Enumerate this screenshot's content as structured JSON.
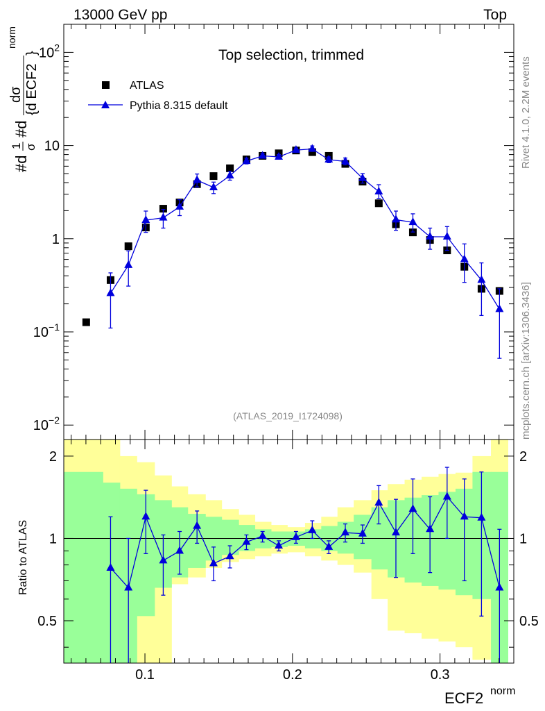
{
  "header": {
    "left": "13000 GeV pp",
    "right": "Top"
  },
  "side_text": {
    "rivet": "Rivet 4.1.0,  2.2M events",
    "mcplots": "mcplots.cern.ch [arXiv:1306.3436]"
  },
  "colors": {
    "data": "#000000",
    "mc": "#0000dd",
    "band_outer": "#ffff99",
    "band_inner": "#99ff99"
  },
  "chart_data": [
    {
      "type": "scatter",
      "title": "Top selection, trimmed",
      "analysis_id": "(ATLAS_2019_I1724098)",
      "xlabel": "ECF2",
      "xlabel_sup": "norm",
      "ylabel": "#d1/σ #d dσ/{d ECF2 norm}",
      "ylabel_parts": {
        "prefix": "#d",
        "one": "1",
        "sigma": "σ",
        "mid": "#d",
        "num": "dσ",
        "den": "{d ECF2",
        "sup": "norm",
        "close": "}"
      },
      "yscale": "log",
      "xlim": [
        0.045,
        0.35
      ],
      "ylim": [
        0.007,
        200
      ],
      "x_ticks": [
        "0.1",
        "0.2",
        "0.3"
      ],
      "y_ticks": [
        {
          "value": 100,
          "base": "10",
          "exp": "2"
        },
        {
          "value": 10,
          "base": "10",
          "exp": ""
        },
        {
          "value": 1,
          "base": "1",
          "exp": ""
        },
        {
          "value": 0.1,
          "base": "10",
          "exp": "−1"
        },
        {
          "value": 0.01,
          "base": "10",
          "exp": "−2"
        }
      ],
      "legend": {
        "position": "top-left",
        "entries": [
          "ATLAS",
          "Pythia 8.315 default"
        ]
      },
      "series": [
        {
          "name": "ATLAS",
          "x": [
            0.0602,
            0.0767,
            0.0888,
            0.1006,
            0.1124,
            0.1235,
            0.1353,
            0.1465,
            0.1576,
            0.1688,
            0.1797,
            0.1907,
            0.2024,
            0.2134,
            0.2246,
            0.2358,
            0.2475,
            0.2585,
            0.2701,
            0.2816,
            0.2932,
            0.3048,
            0.3165,
            0.3281,
            0.3403
          ],
          "values": [
            0.127,
            0.36,
            0.83,
            1.32,
            2.1,
            2.45,
            3.85,
            4.7,
            5.7,
            7.1,
            7.75,
            8.25,
            8.85,
            8.5,
            7.75,
            6.35,
            4.1,
            2.4,
            1.43,
            1.17,
            0.97,
            0.75,
            0.5,
            0.29,
            0.275
          ]
        },
        {
          "name": "Pythia 8.315 default",
          "x": [
            0.0767,
            0.0888,
            0.1006,
            0.1124,
            0.1235,
            0.1353,
            0.1465,
            0.1576,
            0.1688,
            0.1797,
            0.1907,
            0.2024,
            0.2134,
            0.2246,
            0.2358,
            0.2475,
            0.2585,
            0.2701,
            0.2816,
            0.2932,
            0.3048,
            0.3165,
            0.3281,
            0.3403
          ],
          "values": [
            0.26,
            0.52,
            1.58,
            1.68,
            2.2,
            4.25,
            3.55,
            4.75,
            6.8,
            7.75,
            7.55,
            8.95,
            9.2,
            7.05,
            6.75,
            4.45,
            3.2,
            1.6,
            1.5,
            1.05,
            1.05,
            0.6,
            0.36,
            0.175
          ],
          "err_low": [
            0.11,
            0.31,
            1.17,
            1.3,
            1.77,
            3.6,
            3.05,
            4.25,
            6.35,
            7.35,
            7.15,
            8.45,
            8.65,
            6.55,
            6.2,
            3.95,
            2.7,
            1.23,
            1.18,
            0.77,
            0.75,
            0.34,
            0.15,
            0.052
          ],
          "err_high": [
            0.43,
            0.74,
            1.98,
            2.06,
            2.62,
            4.95,
            4.05,
            5.3,
            7.3,
            8.2,
            8.0,
            9.4,
            9.9,
            7.55,
            7.35,
            5.0,
            3.8,
            1.98,
            1.85,
            1.3,
            1.35,
            0.88,
            0.55,
            0.29
          ]
        }
      ]
    },
    {
      "type": "scatter",
      "ylabel": "Ratio to ATLAS",
      "xlabel": "ECF2",
      "xlim": [
        0.045,
        0.35
      ],
      "ylim": [
        0.35,
        2.3
      ],
      "y_ticks": [
        "2",
        "1",
        "0.5"
      ],
      "bands": {
        "edges": [
          0.045,
          0.0715,
          0.083,
          0.0945,
          0.1065,
          0.118,
          0.129,
          0.141,
          0.152,
          0.1635,
          0.1745,
          0.1855,
          0.1965,
          0.2085,
          0.2195,
          0.2305,
          0.2415,
          0.2535,
          0.2645,
          0.276,
          0.2875,
          0.299,
          0.3105,
          0.322,
          0.3345,
          0.346
        ],
        "outer_low": [
          0.35,
          0.35,
          0.35,
          0.35,
          0.35,
          0.68,
          0.72,
          0.78,
          0.82,
          0.84,
          0.86,
          0.88,
          0.89,
          0.86,
          0.83,
          0.8,
          0.75,
          0.6,
          0.46,
          0.45,
          0.43,
          0.42,
          0.4,
          0.36,
          0.35
        ],
        "outer_high": [
          2.3,
          2.3,
          2.0,
          1.9,
          1.7,
          1.55,
          1.45,
          1.38,
          1.28,
          1.22,
          1.15,
          1.12,
          1.1,
          1.14,
          1.2,
          1.3,
          1.38,
          1.5,
          1.58,
          1.64,
          1.68,
          1.72,
          1.74,
          2.0,
          2.3
        ],
        "inner_low": [
          0.35,
          0.35,
          0.35,
          0.52,
          0.66,
          0.72,
          0.78,
          0.83,
          0.87,
          0.9,
          0.92,
          0.93,
          0.94,
          0.92,
          0.9,
          0.88,
          0.84,
          0.77,
          0.72,
          0.69,
          0.67,
          0.65,
          0.62,
          0.6,
          0.35
        ],
        "inner_high": [
          1.75,
          1.6,
          1.52,
          1.45,
          1.38,
          1.3,
          1.23,
          1.2,
          1.17,
          1.12,
          1.08,
          1.06,
          1.06,
          1.08,
          1.11,
          1.15,
          1.22,
          1.3,
          1.38,
          1.41,
          1.44,
          1.48,
          1.52,
          1.75,
          1.75
        ]
      },
      "series": [
        {
          "name": "Pythia 8.315 default / ATLAS",
          "x": [
            0.0767,
            0.0888,
            0.1006,
            0.1124,
            0.1235,
            0.1353,
            0.1465,
            0.1576,
            0.1688,
            0.1797,
            0.1907,
            0.2024,
            0.2134,
            0.2246,
            0.2358,
            0.2475,
            0.2585,
            0.2701,
            0.2816,
            0.2932,
            0.3048,
            0.3165,
            0.3281,
            0.3403
          ],
          "values": [
            0.78,
            0.66,
            1.2,
            0.83,
            0.9,
            1.11,
            0.81,
            0.86,
            0.97,
            1.02,
            0.94,
            1.01,
            1.07,
            0.93,
            1.05,
            1.04,
            1.35,
            1.05,
            1.28,
            1.08,
            1.42,
            1.2,
            1.19,
            0.66
          ],
          "err_low": [
            0.35,
            0.35,
            0.88,
            0.62,
            0.74,
            0.96,
            0.7,
            0.78,
            0.91,
            0.97,
            0.9,
            0.96,
            1.0,
            0.88,
            0.97,
            0.96,
            1.13,
            0.72,
            0.88,
            0.75,
            1.0,
            0.7,
            0.52,
            0.35
          ],
          "err_high": [
            1.2,
            1.0,
            1.5,
            1.03,
            1.06,
            1.26,
            0.93,
            0.94,
            1.03,
            1.06,
            0.98,
            1.06,
            1.16,
            0.98,
            1.13,
            1.12,
            1.56,
            1.39,
            1.65,
            1.42,
            1.82,
            1.65,
            1.75,
            1.08
          ]
        }
      ]
    }
  ]
}
